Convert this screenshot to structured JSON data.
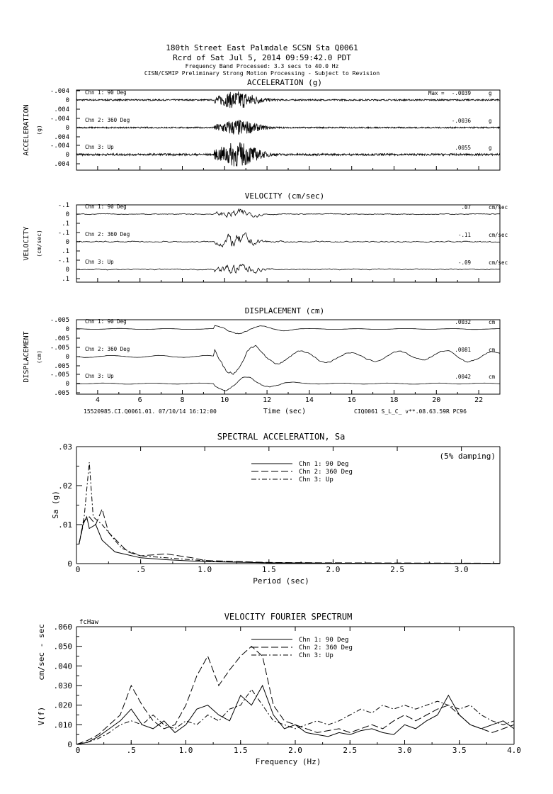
{
  "header": {
    "line1": "180th Street East Palmdale    SCSN Sta Q0061",
    "line2": "Rcrd of Sat Jul  5, 2014 09:59:42.0 PDT",
    "line3": "Frequency Band Processed: 3.3 secs to 40.0 Hz",
    "line4": "CISN/CSMIP Preliminary Strong Motion Processing - Subject to Revision"
  },
  "footer": {
    "left": "15520985.CI.Q0061.01. 07/10/14 16:12:00",
    "right": "CIQ0061  S_L_C_  v**.08.63.59R PC96"
  },
  "chart_data": [
    {
      "type": "line",
      "title": "ACCELERATION (g)",
      "ylabel": "ACCELERATION",
      "yunit": "(g)",
      "xlabel": "Time (sec)",
      "xlim": [
        3.0,
        23.0
      ],
      "xticks": [
        4,
        6,
        8,
        10,
        12,
        14,
        16,
        18,
        20,
        22
      ],
      "ytick_labels": [
        ".004",
        "0",
        "-.004"
      ],
      "ytick_value": 0.004,
      "series": [
        {
          "name": "Chn 1: 90 Deg",
          "max_label": "Max =",
          "peak": "-.0039",
          "unit": "g",
          "peak_value": -0.0039
        },
        {
          "name": "Chn 2: 360 Deg",
          "peak": "-.0036",
          "unit": "g",
          "peak_value": -0.0036
        },
        {
          "name": "Chn 3: Up",
          "peak": ".0055",
          "unit": "g",
          "peak_value": 0.0055
        }
      ]
    },
    {
      "type": "line",
      "title": "VELOCITY (cm/sec)",
      "ylabel": "VELOCITY",
      "yunit": "(cm/sec)",
      "xlim": [
        3.0,
        23.0
      ],
      "ytick_labels": [
        ".1",
        "0",
        "-.1"
      ],
      "ytick_value": 0.1,
      "series": [
        {
          "name": "Chn 1: 90 Deg",
          "peak": ".07",
          "unit": "cm/sec",
          "peak_value": 0.07
        },
        {
          "name": "Chn 2: 360 Deg",
          "peak": "-.11",
          "unit": "cm/sec",
          "peak_value": -0.11
        },
        {
          "name": "Chn 3: Up",
          "peak": "-.09",
          "unit": "cm/sec",
          "peak_value": -0.09
        }
      ]
    },
    {
      "type": "line",
      "title": "DISPLACEMENT (cm)",
      "ylabel": "DISPLACEMENT",
      "yunit": "(cm)",
      "xlim": [
        3.0,
        23.0
      ],
      "ytick_labels": [
        ".005",
        "0",
        "-.005"
      ],
      "ytick_value": 0.005,
      "series": [
        {
          "name": "Chn 1: 90 Deg",
          "peak": ".0032",
          "unit": "cm",
          "peak_value": 0.0032
        },
        {
          "name": "Chn 2: 360 Deg",
          "peak": ".0081",
          "unit": "cm",
          "peak_value": 0.0081
        },
        {
          "name": "Chn 3: Up",
          "peak": ".0042",
          "unit": "cm",
          "peak_value": 0.0042
        }
      ]
    },
    {
      "type": "line",
      "title": "SPECTRAL ACCELERATION, Sa",
      "note": "(5% damping)",
      "xlabel": "Period (sec)",
      "ylabel": "Sa (g)",
      "xlim": [
        0,
        3.3
      ],
      "ylim": [
        0,
        0.03
      ],
      "xticks": [
        ".5",
        "1.0",
        "1.5",
        "2.0",
        "2.5",
        "3.0"
      ],
      "yticks": [
        ".01",
        ".02",
        ".03"
      ],
      "y0": "0",
      "x0": "0",
      "legend": "top-center",
      "series": [
        {
          "name": "Chn 1: 90 Deg",
          "style": "solid",
          "x": [
            0.02,
            0.05,
            0.08,
            0.1,
            0.15,
            0.2,
            0.3,
            0.5,
            0.7,
            1.0,
            1.5,
            2.0,
            3.3
          ],
          "y": [
            0.005,
            0.01,
            0.012,
            0.009,
            0.01,
            0.006,
            0.003,
            0.0015,
            0.001,
            0.0005,
            0.0002,
            0.0001,
            5e-05
          ]
        },
        {
          "name": "Chn 2: 360 Deg",
          "style": "dashed",
          "x": [
            0.02,
            0.06,
            0.1,
            0.15,
            0.2,
            0.25,
            0.4,
            0.5,
            0.7,
            0.9,
            1.0,
            1.5,
            2.0,
            3.3
          ],
          "y": [
            0.005,
            0.011,
            0.012,
            0.01,
            0.014,
            0.008,
            0.003,
            0.002,
            0.0025,
            0.0015,
            0.0008,
            0.0003,
            0.0002,
            0.0001
          ]
        },
        {
          "name": "Chn 3: Up",
          "style": "dashdot",
          "x": [
            0.02,
            0.06,
            0.1,
            0.13,
            0.2,
            0.25,
            0.35,
            0.5,
            0.7,
            1.0,
            1.5,
            2.0,
            3.3
          ],
          "y": [
            0.005,
            0.012,
            0.026,
            0.012,
            0.01,
            0.008,
            0.004,
            0.002,
            0.0015,
            0.0007,
            0.0002,
            0.0001,
            5e-05
          ]
        }
      ]
    },
    {
      "type": "line",
      "title": "VELOCITY FOURIER SPECTRUM",
      "corner_label": "fcHaw",
      "xlabel": "Frequency (Hz)",
      "ylabel": "V(f)",
      "yunit": "cm/sec - sec",
      "xlim": [
        0,
        4.0
      ],
      "ylim": [
        0,
        0.06
      ],
      "xticks": [
        ".5",
        "1.0",
        "1.5",
        "2.0",
        "2.5",
        "3.0",
        "3.5",
        "4.0"
      ],
      "yticks": [
        ".010",
        ".020",
        ".030",
        ".040",
        ".050",
        ".060"
      ],
      "y0": "0",
      "x0": "0",
      "legend": "top-center",
      "series": [
        {
          "name": "Chn 1: 90 Deg",
          "style": "solid",
          "x_step": 0.1,
          "y": [
            0,
            0.001,
            0.004,
            0.008,
            0.012,
            0.018,
            0.01,
            0.008,
            0.012,
            0.006,
            0.01,
            0.018,
            0.02,
            0.015,
            0.012,
            0.025,
            0.02,
            0.03,
            0.015,
            0.008,
            0.01,
            0.006,
            0.005,
            0.004,
            0.006,
            0.005,
            0.007,
            0.008,
            0.006,
            0.005,
            0.01,
            0.008,
            0.012,
            0.015,
            0.025,
            0.015,
            0.01,
            0.008,
            0.01,
            0.012,
            0.008
          ]
        },
        {
          "name": "Chn 2: 360 Deg",
          "style": "dashed",
          "x_step": 0.1,
          "y": [
            0,
            0.002,
            0.005,
            0.01,
            0.015,
            0.03,
            0.02,
            0.012,
            0.008,
            0.01,
            0.02,
            0.035,
            0.045,
            0.03,
            0.038,
            0.045,
            0.05,
            0.045,
            0.02,
            0.012,
            0.01,
            0.008,
            0.006,
            0.007,
            0.008,
            0.006,
            0.008,
            0.01,
            0.008,
            0.012,
            0.015,
            0.012,
            0.015,
            0.018,
            0.02,
            0.015,
            0.01,
            0.008,
            0.006,
            0.008,
            0.01
          ]
        },
        {
          "name": "Chn 3: Up",
          "style": "dashdot",
          "x_step": 0.1,
          "y": [
            0,
            0.001,
            0.003,
            0.006,
            0.01,
            0.012,
            0.01,
            0.015,
            0.01,
            0.008,
            0.012,
            0.01,
            0.015,
            0.012,
            0.018,
            0.02,
            0.028,
            0.02,
            0.012,
            0.01,
            0.008,
            0.01,
            0.012,
            0.01,
            0.012,
            0.015,
            0.018,
            0.016,
            0.02,
            0.018,
            0.02,
            0.018,
            0.02,
            0.022,
            0.02,
            0.018,
            0.02,
            0.015,
            0.012,
            0.01,
            0.012
          ]
        }
      ]
    }
  ]
}
